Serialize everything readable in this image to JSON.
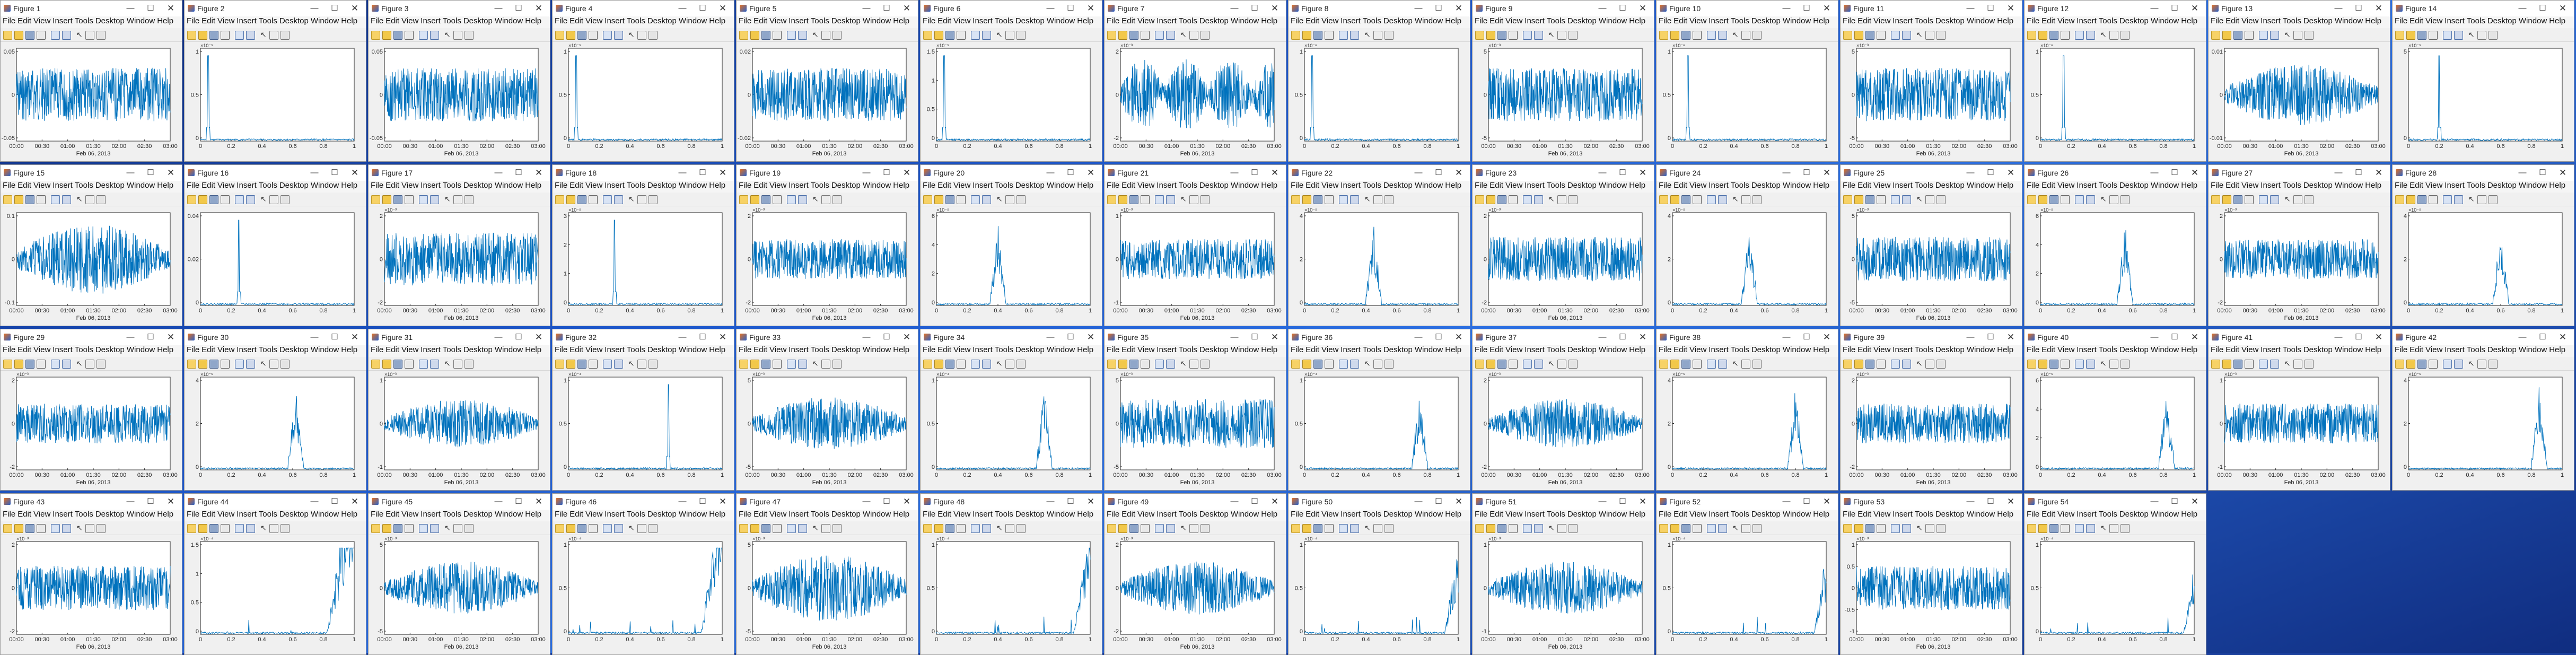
{
  "menu": [
    "File",
    "Edit",
    "View",
    "Insert",
    "Tools",
    "Desktop",
    "Window",
    "Help"
  ],
  "colors": {
    "trace": "#0072bd",
    "axes": "#262626",
    "window": "#f0f0f0",
    "desktop": "#1d56c9"
  },
  "icons": {
    "minimize": "minimize-icon",
    "maximize": "maximize-icon",
    "close": "close-icon",
    "figure": "matlab-figure-icon"
  },
  "titlebar_glyphs": {
    "minimize": "—",
    "maximize": "☐",
    "close": "✕"
  },
  "time_axis": {
    "ticks": [
      "00:00",
      "00:30",
      "01:00",
      "01:30",
      "02:00",
      "02:30",
      "03:00"
    ],
    "date": "Feb 06, 2013"
  },
  "freq_axis": {
    "ticks": [
      "0",
      "0.2",
      "0.4",
      "0.6",
      "0.8",
      "1"
    ]
  },
  "figures": [
    {
      "title": "Figure 1",
      "kind": "time",
      "ylim": [
        -0.05,
        0.05
      ],
      "yticks": [
        "0.05",
        "0",
        "-0.05"
      ],
      "exp": "",
      "env": "flat",
      "amp": 0.6
    },
    {
      "title": "Figure 2",
      "kind": "spec",
      "yticks": [
        "1",
        "0.5",
        "0"
      ],
      "exp": "×10⁻⁵",
      "peak": 0.05,
      "spread": "single"
    },
    {
      "title": "Figure 3",
      "kind": "time",
      "ylim": [
        -0.05,
        0.05
      ],
      "yticks": [
        "0.05",
        "0",
        "-0.05"
      ],
      "exp": "",
      "env": "flat",
      "amp": 0.6
    },
    {
      "title": "Figure 4",
      "kind": "spec",
      "yticks": [
        "1",
        "0.5",
        "0"
      ],
      "exp": "×10⁻⁵",
      "peak": 0.05,
      "spread": "single"
    },
    {
      "title": "Figure 5",
      "kind": "time",
      "ylim": [
        -0.02,
        0.02
      ],
      "yticks": [
        "0.02",
        "0",
        "-0.02"
      ],
      "exp": "",
      "env": "flat",
      "amp": 0.6
    },
    {
      "title": "Figure 6",
      "kind": "spec",
      "yticks": [
        "1.5",
        "1",
        "0.5",
        "0"
      ],
      "exp": "×10⁻⁵",
      "peak": 0.05,
      "spread": "single"
    },
    {
      "title": "Figure 7",
      "kind": "time",
      "ylim": [
        -2,
        2
      ],
      "yticks": [
        "2",
        "0",
        "-2"
      ],
      "exp": "×10⁻³",
      "env": "pulse",
      "amp": 0.8
    },
    {
      "title": "Figure 8",
      "kind": "spec",
      "yticks": [
        "1",
        "0.5",
        "0"
      ],
      "exp": "×10⁻⁶",
      "peak": 0.05,
      "spread": "single"
    },
    {
      "title": "Figure 9",
      "kind": "time",
      "ylim": [
        -5,
        5
      ],
      "yticks": [
        "5",
        "0",
        "-5"
      ],
      "exp": "×10⁻³",
      "env": "flat",
      "amp": 0.6
    },
    {
      "title": "Figure 10",
      "kind": "spec",
      "yticks": [
        "1",
        "0.5",
        "0"
      ],
      "exp": "×10⁻⁶",
      "peak": 0.1,
      "spread": "single"
    },
    {
      "title": "Figure 11",
      "kind": "time",
      "ylim": [
        -5,
        5
      ],
      "yticks": [
        "5",
        "0",
        "-5"
      ],
      "exp": "×10⁻³",
      "env": "flat",
      "amp": 0.6
    },
    {
      "title": "Figure 12",
      "kind": "spec",
      "yticks": [
        "1",
        "0.5",
        "0"
      ],
      "exp": "×10⁻⁶",
      "peak": 0.15,
      "spread": "single"
    },
    {
      "title": "Figure 13",
      "kind": "time",
      "ylim": [
        -0.01,
        0.01
      ],
      "yticks": [
        "0.01",
        "0",
        "-0.01"
      ],
      "exp": "",
      "env": "bulge",
      "amp": 0.7
    },
    {
      "title": "Figure 14",
      "kind": "spec",
      "yticks": [
        "5",
        "0"
      ],
      "exp": "×10⁻⁵",
      "peak": 0.2,
      "spread": "single"
    },
    {
      "title": "Figure 15",
      "kind": "time",
      "ylim": [
        -0.1,
        0.1
      ],
      "yticks": [
        "0.1",
        "0",
        "-0.1"
      ],
      "exp": "",
      "env": "bulge",
      "amp": 0.8
    },
    {
      "title": "Figure 16",
      "kind": "spec",
      "yticks": [
        "0.04",
        "0.02",
        "0"
      ],
      "exp": "",
      "peak": 0.25,
      "spread": "single"
    },
    {
      "title": "Figure 17",
      "kind": "time",
      "ylim": [
        -2,
        2
      ],
      "yticks": [
        "2",
        "0",
        "-2"
      ],
      "exp": "×10⁻³",
      "env": "flat",
      "amp": 0.6
    },
    {
      "title": "Figure 18",
      "kind": "spec",
      "yticks": [
        "3",
        "2",
        "1",
        "0"
      ],
      "exp": "×10⁻⁵",
      "peak": 0.3,
      "spread": "single"
    },
    {
      "title": "Figure 19",
      "kind": "time",
      "ylim": [
        -2,
        2
      ],
      "yticks": [
        "2",
        "0",
        "-2"
      ],
      "exp": "×10⁻³",
      "env": "flat",
      "amp": 0.45
    },
    {
      "title": "Figure 20",
      "kind": "spec",
      "yticks": [
        "6",
        "4",
        "2",
        "0"
      ],
      "exp": "×10⁻⁵",
      "peak": 0.4,
      "spread": "cluster"
    },
    {
      "title": "Figure 21",
      "kind": "time",
      "ylim": [
        -1,
        1
      ],
      "yticks": [
        "1",
        "0",
        "-1"
      ],
      "exp": "×10⁻³",
      "env": "flat",
      "amp": 0.45
    },
    {
      "title": "Figure 22",
      "kind": "spec",
      "yticks": [
        "4",
        "2",
        "0"
      ],
      "exp": "×10⁻⁵",
      "peak": 0.45,
      "spread": "cluster"
    },
    {
      "title": "Figure 23",
      "kind": "time",
      "ylim": [
        -2,
        2
      ],
      "yticks": [
        "2",
        "0",
        "-2"
      ],
      "exp": "×10⁻³",
      "env": "flat",
      "amp": 0.5
    },
    {
      "title": "Figure 24",
      "kind": "spec",
      "yticks": [
        "4",
        "2",
        "0"
      ],
      "exp": "×10⁻⁵",
      "peak": 0.5,
      "spread": "cluster"
    },
    {
      "title": "Figure 25",
      "kind": "time",
      "ylim": [
        -5,
        5
      ],
      "yticks": [
        "5",
        "0",
        "-5"
      ],
      "exp": "×10⁻³",
      "env": "flat",
      "amp": 0.5
    },
    {
      "title": "Figure 26",
      "kind": "spec",
      "yticks": [
        "6",
        "4",
        "2",
        "0"
      ],
      "exp": "×10⁻⁵",
      "peak": 0.55,
      "spread": "cluster"
    },
    {
      "title": "Figure 27",
      "kind": "time",
      "ylim": [
        -2,
        2
      ],
      "yticks": [
        "2",
        "0",
        "-2"
      ],
      "exp": "×10⁻³",
      "env": "flat",
      "amp": 0.45
    },
    {
      "title": "Figure 28",
      "kind": "spec",
      "yticks": [
        "4",
        "2",
        "0"
      ],
      "exp": "×10⁻⁵",
      "peak": 0.6,
      "spread": "cluster"
    },
    {
      "title": "Figure 29",
      "kind": "time",
      "ylim": [
        -2,
        2
      ],
      "yticks": [
        "2",
        "0",
        "-2"
      ],
      "exp": "×10⁻³",
      "env": "flat",
      "amp": 0.45
    },
    {
      "title": "Figure 30",
      "kind": "spec",
      "yticks": [
        "4",
        "2",
        "0"
      ],
      "exp": "×10⁻⁵",
      "peak": 0.62,
      "spread": "cluster"
    },
    {
      "title": "Figure 31",
      "kind": "time",
      "ylim": [
        -1,
        1
      ],
      "yticks": [
        "1",
        "0",
        "-1"
      ],
      "exp": "×10⁻³",
      "env": "bulge",
      "amp": 0.55
    },
    {
      "title": "Figure 32",
      "kind": "spec",
      "yticks": [
        "1",
        "0.5",
        "0"
      ],
      "exp": "×10⁻⁴",
      "peak": 0.65,
      "spread": "single"
    },
    {
      "title": "Figure 33",
      "kind": "time",
      "ylim": [
        -5,
        5
      ],
      "yticks": [
        "5",
        "0",
        "-5"
      ],
      "exp": "×10⁻³",
      "env": "bulge",
      "amp": 0.6
    },
    {
      "title": "Figure 34",
      "kind": "spec",
      "yticks": [
        "1",
        "0.5",
        "0"
      ],
      "exp": "×10⁻⁴",
      "peak": 0.7,
      "spread": "cluster"
    },
    {
      "title": "Figure 35",
      "kind": "time",
      "ylim": [
        -5,
        5
      ],
      "yticks": [
        "5",
        "0",
        "-5"
      ],
      "exp": "×10⁻³",
      "env": "flat",
      "amp": 0.55
    },
    {
      "title": "Figure 36",
      "kind": "spec",
      "yticks": [
        "1",
        "0.5",
        "0"
      ],
      "exp": "×10⁻⁴",
      "peak": 0.75,
      "spread": "cluster"
    },
    {
      "title": "Figure 37",
      "kind": "time",
      "ylim": [
        -2,
        2
      ],
      "yticks": [
        "2",
        "0",
        "-2"
      ],
      "exp": "×10⁻³",
      "env": "bulge",
      "amp": 0.55
    },
    {
      "title": "Figure 38",
      "kind": "spec",
      "yticks": [
        "4",
        "2",
        "0"
      ],
      "exp": "×10⁻⁵",
      "peak": 0.8,
      "spread": "cluster"
    },
    {
      "title": "Figure 39",
      "kind": "time",
      "ylim": [
        -2,
        2
      ],
      "yticks": [
        "2",
        "0",
        "-2"
      ],
      "exp": "×10⁻³",
      "env": "flat",
      "amp": 0.45
    },
    {
      "title": "Figure 40",
      "kind": "spec",
      "yticks": [
        "6",
        "4",
        "2",
        "0"
      ],
      "exp": "×10⁻⁵",
      "peak": 0.82,
      "spread": "cluster"
    },
    {
      "title": "Figure 41",
      "kind": "time",
      "ylim": [
        -1,
        1
      ],
      "yticks": [
        "1",
        "0",
        "-1"
      ],
      "exp": "×10⁻³",
      "env": "flat",
      "amp": 0.45
    },
    {
      "title": "Figure 42",
      "kind": "spec",
      "yticks": [
        "4",
        "2",
        "0"
      ],
      "exp": "×10⁻⁵",
      "peak": 0.85,
      "spread": "cluster"
    },
    {
      "title": "Figure 43",
      "kind": "time",
      "ylim": [
        -2,
        2
      ],
      "yticks": [
        "2",
        "0",
        "-2"
      ],
      "exp": "×10⁻³",
      "env": "flat",
      "amp": 0.5
    },
    {
      "title": "Figure 44",
      "kind": "spec",
      "yticks": [
        "1.5",
        "1",
        "0.5",
        "0"
      ],
      "exp": "×10⁻⁴",
      "peak": 0.88,
      "spread": "edge"
    },
    {
      "title": "Figure 45",
      "kind": "time",
      "ylim": [
        -5,
        5
      ],
      "yticks": [
        "5",
        "0",
        "-5"
      ],
      "exp": "×10⁻³",
      "env": "bulge",
      "amp": 0.6
    },
    {
      "title": "Figure 46",
      "kind": "spec",
      "yticks": [
        "1",
        "0.5",
        "0"
      ],
      "exp": "×10⁻⁴",
      "peak": 0.92,
      "spread": "edge"
    },
    {
      "title": "Figure 47",
      "kind": "time",
      "ylim": [
        -5,
        5
      ],
      "yticks": [
        "5",
        "0",
        "-5"
      ],
      "exp": "×10⁻³",
      "env": "bulge",
      "amp": 0.75
    },
    {
      "title": "Figure 48",
      "kind": "spec",
      "yticks": [
        "1",
        "0.5",
        "0"
      ],
      "exp": "×10⁻⁴",
      "peak": 0.95,
      "spread": "edge"
    },
    {
      "title": "Figure 49",
      "kind": "time",
      "ylim": [
        -2,
        2
      ],
      "yticks": [
        "2",
        "0",
        "-2"
      ],
      "exp": "×10⁻³",
      "env": "bulge",
      "amp": 0.6
    },
    {
      "title": "Figure 50",
      "kind": "spec",
      "yticks": [
        "1",
        "0.5",
        "0"
      ],
      "exp": "×10⁻⁴",
      "peak": 0.97,
      "spread": "edge"
    },
    {
      "title": "Figure 51",
      "kind": "time",
      "ylim": [
        -1,
        1
      ],
      "yticks": [
        "1",
        "0",
        "-1"
      ],
      "exp": "×10⁻³",
      "env": "bulge",
      "amp": 0.6
    },
    {
      "title": "Figure 52",
      "kind": "spec",
      "yticks": [
        "1",
        "0.5",
        "0"
      ],
      "exp": "×10⁻⁴",
      "peak": 0.98,
      "spread": "edge"
    },
    {
      "title": "Figure 53",
      "kind": "time",
      "ylim": [
        -1,
        1
      ],
      "yticks": [
        "1",
        "0.5",
        "0",
        "-0.5",
        "-1"
      ],
      "exp": "×10⁻³",
      "env": "flat",
      "amp": 0.5
    },
    {
      "title": "Figure 54",
      "kind": "spec",
      "yticks": [
        "1",
        "0.5",
        "0"
      ],
      "exp": "×10⁻⁴",
      "peak": 0.99,
      "spread": "edge"
    }
  ]
}
